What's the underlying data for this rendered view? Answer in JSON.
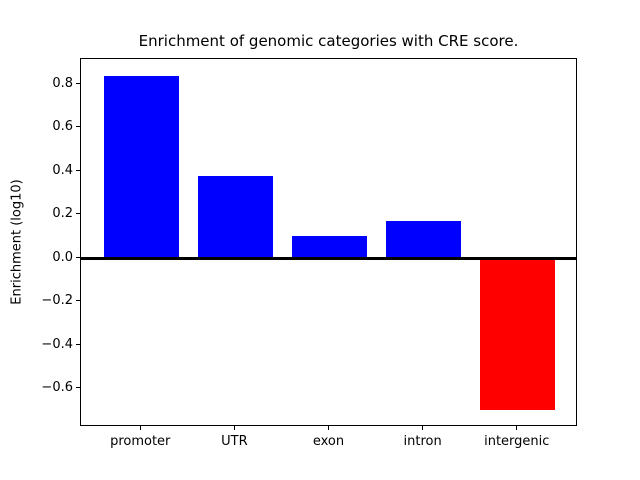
{
  "chart_data": {
    "type": "bar",
    "title": "Enrichment of genomic categories with CRE score.",
    "xlabel": "",
    "ylabel": "Enrichment (log10)",
    "categories": [
      "promoter",
      "UTR",
      "exon",
      "intron",
      "intergenic"
    ],
    "values": [
      0.84,
      0.38,
      0.1,
      0.17,
      -0.7
    ],
    "bar_colors": [
      "#0000ff",
      "#0000ff",
      "#0000ff",
      "#0000ff",
      "#ff0000"
    ],
    "positive_color": "#0000ff",
    "negative_color": "#ff0000",
    "bar_width": 0.8,
    "ylim": [
      -0.777,
      0.917
    ],
    "xlim": [
      -0.64,
      4.64
    ],
    "yticks": [
      0.8,
      0.6,
      0.4,
      0.2,
      0.0,
      -0.2,
      -0.4,
      -0.6
    ],
    "ytick_labels": [
      "0.8",
      "0.6",
      "0.4",
      "0.2",
      "0.0",
      "−0.2",
      "−0.4",
      "−0.6"
    ],
    "zero_line": true,
    "grid": false,
    "legend": "none",
    "frame_color": "#000000",
    "text_color": "#000000",
    "background_color": "#ffffff"
  }
}
